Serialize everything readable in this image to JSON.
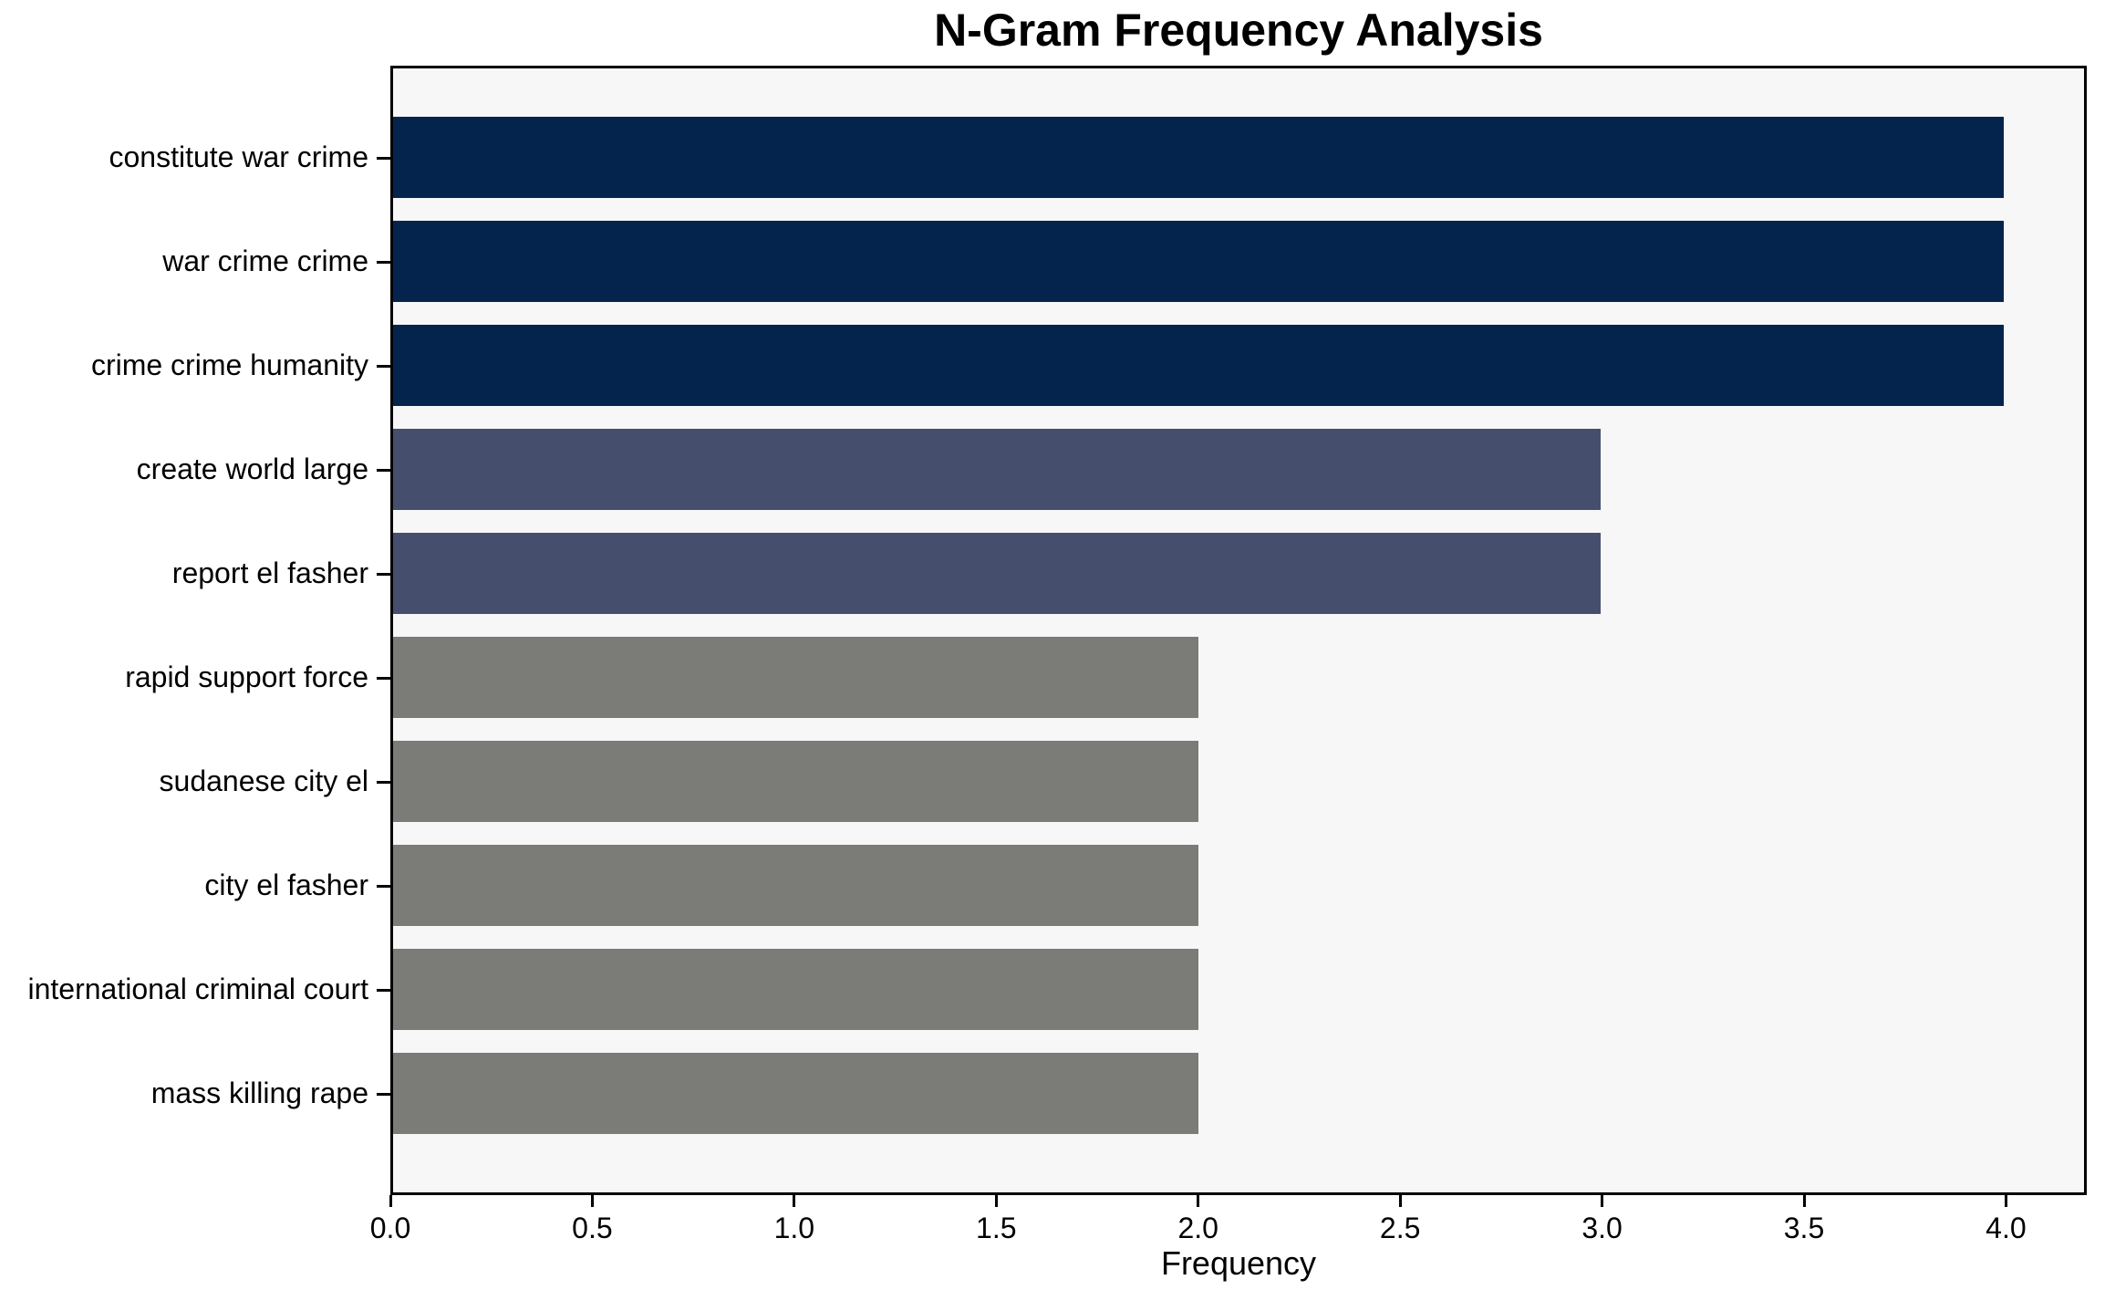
{
  "chart_data": {
    "type": "bar",
    "orientation": "horizontal",
    "title": "N-Gram Frequency Analysis",
    "xlabel": "Frequency",
    "ylabel": "",
    "categories": [
      "constitute war crime",
      "war crime crime",
      "crime crime humanity",
      "create world large",
      "report el fasher",
      "rapid support force",
      "sudanese city el",
      "city el fasher",
      "international criminal court",
      "mass killing rape"
    ],
    "values": [
      4,
      4,
      4,
      3,
      3,
      2,
      2,
      2,
      2,
      2
    ],
    "bar_colors": [
      "#04244d",
      "#04244d",
      "#04244d",
      "#454f6d",
      "#454f6d",
      "#7b7b78",
      "#7b7b78",
      "#7b7b78",
      "#7b7b78",
      "#7b7b78"
    ],
    "color_groups": {
      "frequency_4": "#04244d",
      "frequency_3": "#454f6d",
      "frequency_2": "#7b7b78"
    },
    "xlim": [
      0,
      4.2
    ],
    "xticks": [
      0.0,
      0.5,
      1.0,
      1.5,
      2.0,
      2.5,
      3.0,
      3.5,
      4.0
    ],
    "xtick_labels": [
      "0.0",
      "0.5",
      "1.0",
      "1.5",
      "2.0",
      "2.5",
      "3.0",
      "3.5",
      "4.0"
    ],
    "grid": false,
    "legend": "none",
    "plot_background": "#f7f7f7",
    "figure_background": "#ffffff"
  }
}
